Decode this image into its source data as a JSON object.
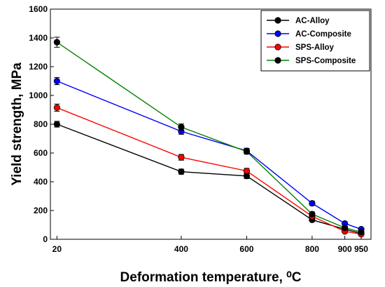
{
  "chart_data": {
    "type": "line",
    "xlabel": "Deformation temperature, ",
    "xlabel_unit": "⁰C",
    "ylabel": "Yield strength, MPa",
    "xlim": [
      0,
      980
    ],
    "ylim": [
      0,
      1600
    ],
    "x_ticks": [
      20,
      400,
      600,
      800,
      900,
      950
    ],
    "y_ticks": [
      0,
      200,
      400,
      600,
      800,
      1000,
      1200,
      1400,
      1600
    ],
    "grid": false,
    "legend_position": "top-right",
    "x": [
      20,
      400,
      600,
      800,
      900,
      950
    ],
    "series": [
      {
        "name": "AC-Alloy",
        "color": "#000000",
        "marker": "#000000",
        "values": [
          800,
          470,
          440,
          135,
          70,
          40
        ],
        "errors": [
          20,
          18,
          18,
          12,
          10,
          8
        ]
      },
      {
        "name": "AC-Composite",
        "color": "#0000ff",
        "marker": "#0000ff",
        "values": [
          1100,
          750,
          615,
          250,
          110,
          70
        ],
        "errors": [
          25,
          20,
          18,
          15,
          10,
          8
        ]
      },
      {
        "name": "SPS-Alloy",
        "color": "#ff0000",
        "marker": "#ff0000",
        "values": [
          915,
          570,
          475,
          160,
          55,
          35
        ],
        "errors": [
          25,
          20,
          18,
          15,
          8,
          8
        ]
      },
      {
        "name": "SPS-Composite",
        "color": "#008000",
        "marker": "#000000",
        "values": [
          1370,
          780,
          610,
          175,
          80,
          50
        ],
        "errors": [
          35,
          22,
          18,
          15,
          10,
          8
        ]
      }
    ]
  }
}
